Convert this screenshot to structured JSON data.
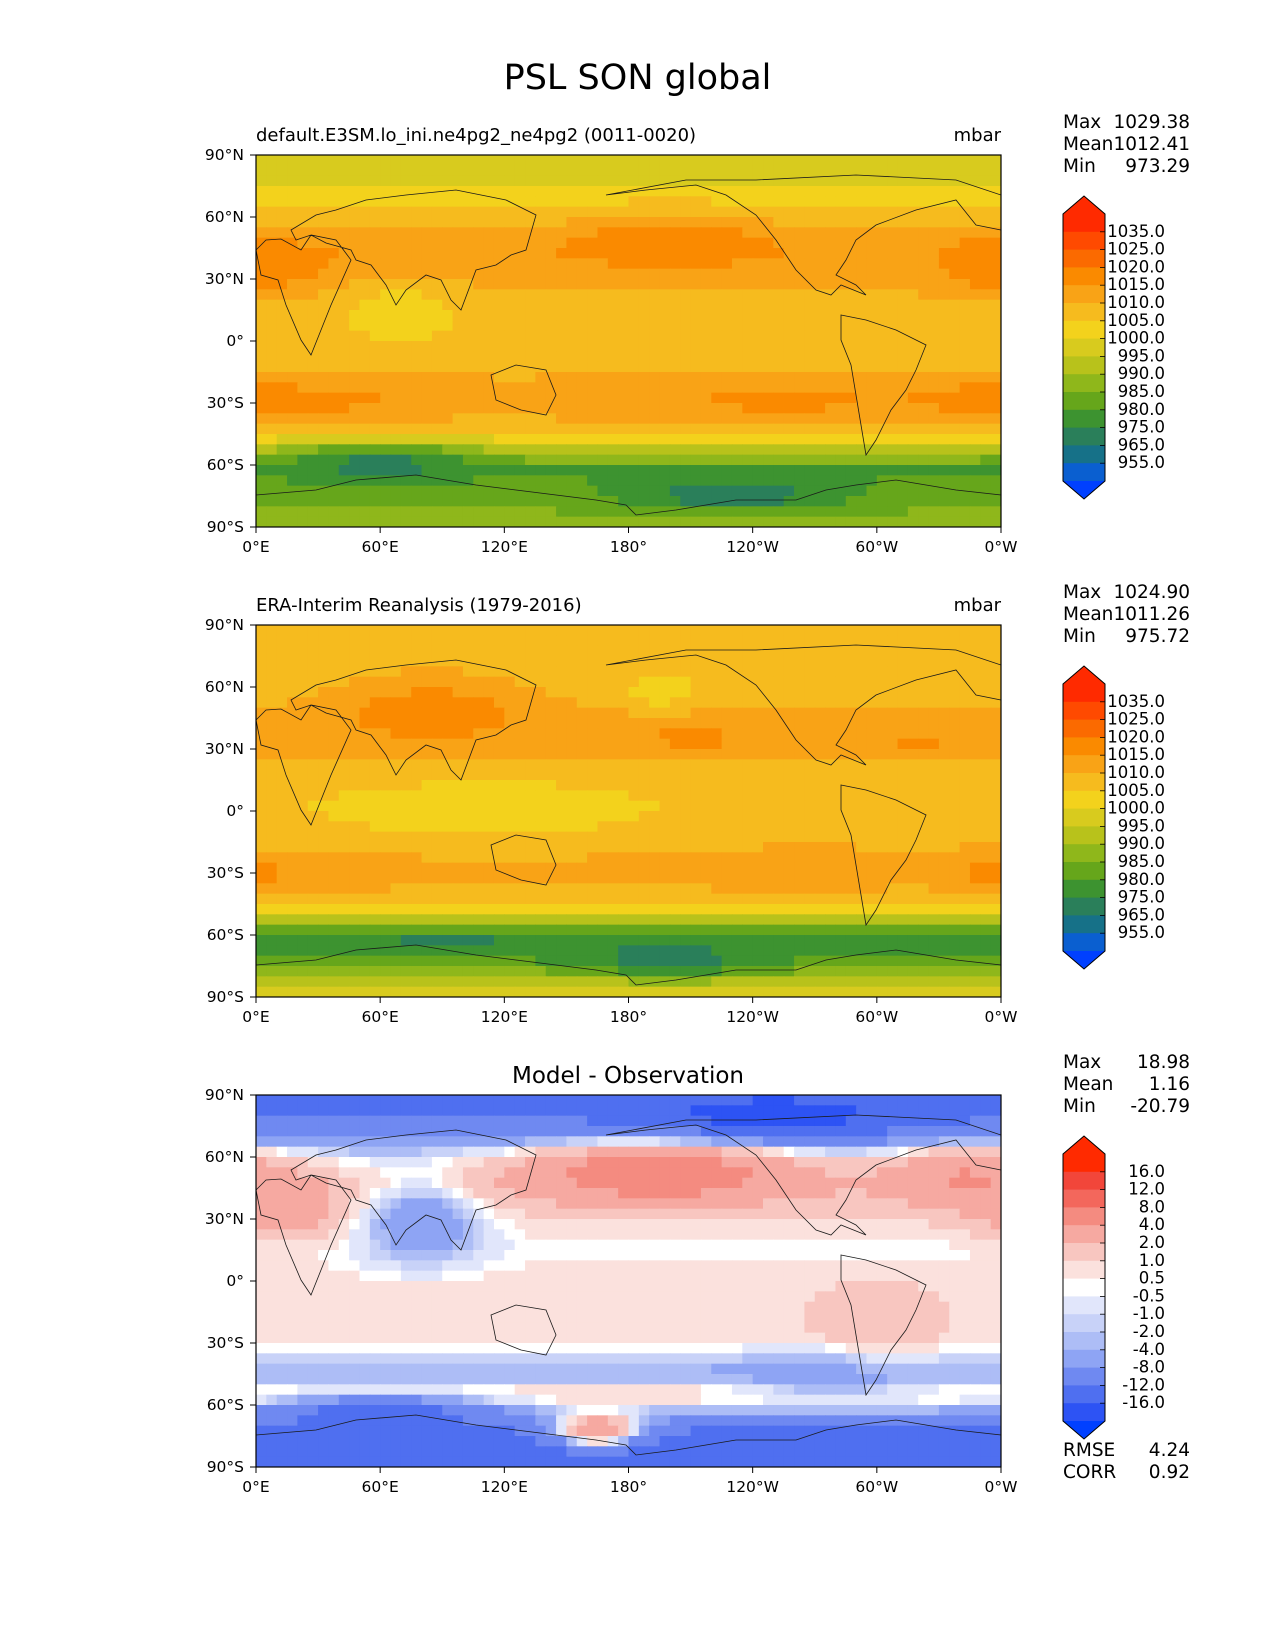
{
  "figure_title": "PSL SON global",
  "chart_data": [
    {
      "type": "contourf_map",
      "title_left": "default.E3SM.lo_ini.ne4pg2_ne4pg2 (0011-0020)",
      "title_center": "",
      "title_right": "mbar",
      "xticks": [
        "0°E",
        "60°E",
        "120°E",
        "180°",
        "120°W",
        "60°W",
        "0°W"
      ],
      "yticks": [
        "90°N",
        "60°N",
        "30°N",
        "0°",
        "30°S",
        "60°S",
        "90°S"
      ],
      "lat_range": [
        -90,
        90
      ],
      "lon_range": [
        0,
        360
      ],
      "stats": [
        {
          "label": "Max",
          "value": "1029.38"
        },
        {
          "label": "Mean",
          "value": "1012.41"
        },
        {
          "label": "Min",
          "value": "973.29"
        }
      ],
      "colorbar": {
        "labels": [
          "1035.0",
          "1025.0",
          "1020.0",
          "1015.0",
          "1010.0",
          "1005.0",
          "1000.0",
          "995.0",
          "990.0",
          "985.0",
          "980.0",
          "975.0",
          "965.0",
          "955.0"
        ],
        "colors": [
          "#ff2a00",
          "#ff4a00",
          "#fb6a00",
          "#fa8a00",
          "#f9a316",
          "#f6bb1e",
          "#f3d21c",
          "#d8cb1e",
          "#b8c21b",
          "#8fb71b",
          "#66a61b",
          "#3d9330",
          "#2a7f5a",
          "#167188",
          "#0a5fd0",
          "#0040ff"
        ],
        "top_color": "#ff2a00",
        "bottom_color": "#0040ff"
      },
      "lat_profile": [
        {
          "lat": 90,
          "value": 1003
        },
        {
          "lat": 75,
          "value": 1005
        },
        {
          "lat": 60,
          "value": 1011
        },
        {
          "lat": 45,
          "value": 1019
        },
        {
          "lat": 30,
          "value": 1017
        },
        {
          "lat": 15,
          "value": 1012
        },
        {
          "lat": 0,
          "value": 1011
        },
        {
          "lat": -15,
          "value": 1014
        },
        {
          "lat": -30,
          "value": 1020
        },
        {
          "lat": -45,
          "value": 1010
        },
        {
          "lat": -55,
          "value": 995
        },
        {
          "lat": -62,
          "value": 983
        },
        {
          "lat": -70,
          "value": 987
        },
        {
          "lat": -80,
          "value": 990
        },
        {
          "lat": -90,
          "value": 992
        }
      ],
      "features": [
        {
          "lon": 200,
          "lat": 48,
          "dlon": 38,
          "dlat": 10,
          "value": 1023
        },
        {
          "lon": 15,
          "lat": 37,
          "dlon": 20,
          "dlat": 8,
          "value": 1022
        },
        {
          "lon": 350,
          "lat": 38,
          "dlon": 18,
          "dlat": 10,
          "value": 1021
        },
        {
          "lon": 70,
          "lat": 15,
          "dlon": 22,
          "dlat": 10,
          "value": 1008
        },
        {
          "lon": 60,
          "lat": -58,
          "dlon": 30,
          "dlat": 6,
          "value": 978
        },
        {
          "lon": 230,
          "lat": -75,
          "dlon": 40,
          "dlat": 5,
          "value": 976
        },
        {
          "lon": 30,
          "lat": -28,
          "dlon": 25,
          "dlat": 6,
          "value": 1021
        },
        {
          "lon": 255,
          "lat": -28,
          "dlon": 30,
          "dlat": 6,
          "value": 1021
        },
        {
          "lon": 345,
          "lat": -28,
          "dlon": 20,
          "dlat": 6,
          "value": 1021
        }
      ],
      "rmse": "",
      "corr": ""
    },
    {
      "type": "contourf_map",
      "title_left": "ERA-Interim Reanalysis (1979-2016)",
      "title_center": "",
      "title_right": "mbar",
      "xticks": [
        "0°E",
        "60°E",
        "120°E",
        "180°",
        "120°W",
        "60°W",
        "0°W"
      ],
      "yticks": [
        "90°N",
        "60°N",
        "30°N",
        "0°",
        "30°S",
        "60°S",
        "90°S"
      ],
      "lat_range": [
        -90,
        90
      ],
      "lon_range": [
        0,
        360
      ],
      "stats": [
        {
          "label": "Max",
          "value": "1024.90"
        },
        {
          "label": "Mean",
          "value": "1011.26"
        },
        {
          "label": "Min",
          "value": "975.72"
        }
      ],
      "colorbar": {
        "labels": [
          "1035.0",
          "1025.0",
          "1020.0",
          "1015.0",
          "1010.0",
          "1005.0",
          "1000.0",
          "995.0",
          "990.0",
          "985.0",
          "980.0",
          "975.0",
          "965.0",
          "955.0"
        ],
        "colors": [
          "#ff2a00",
          "#ff4a00",
          "#fb6a00",
          "#fa8a00",
          "#f9a316",
          "#f6bb1e",
          "#f3d21c",
          "#d8cb1e",
          "#b8c21b",
          "#8fb71b",
          "#66a61b",
          "#3d9330",
          "#2a7f5a",
          "#167188",
          "#0a5fd0",
          "#0040ff"
        ],
        "top_color": "#ff2a00",
        "bottom_color": "#0040ff"
      },
      "lat_profile": [
        {
          "lat": 90,
          "value": 1012
        },
        {
          "lat": 75,
          "value": 1013
        },
        {
          "lat": 60,
          "value": 1012
        },
        {
          "lat": 45,
          "value": 1016
        },
        {
          "lat": 30,
          "value": 1016
        },
        {
          "lat": 15,
          "value": 1012
        },
        {
          "lat": 0,
          "value": 1011
        },
        {
          "lat": -15,
          "value": 1014
        },
        {
          "lat": -30,
          "value": 1018
        },
        {
          "lat": -45,
          "value": 1010
        },
        {
          "lat": -55,
          "value": 992
        },
        {
          "lat": -65,
          "value": 982
        },
        {
          "lat": -75,
          "value": 990
        },
        {
          "lat": -85,
          "value": 1002
        },
        {
          "lat": -90,
          "value": 1006
        }
      ],
      "features": [
        {
          "lon": 85,
          "lat": 48,
          "dlon": 35,
          "dlat": 12,
          "value": 1023
        },
        {
          "lon": 210,
          "lat": 35,
          "dlon": 25,
          "dlat": 6,
          "value": 1021
        },
        {
          "lon": 320,
          "lat": 33,
          "dlon": 14,
          "dlat": 5,
          "value": 1021
        },
        {
          "lon": 30,
          "lat": -30,
          "dlon": 25,
          "dlat": 6,
          "value": 1020
        },
        {
          "lon": 260,
          "lat": -30,
          "dlon": 30,
          "dlat": 6,
          "value": 1020
        },
        {
          "lon": 350,
          "lat": -30,
          "dlon": 15,
          "dlat": 6,
          "value": 1020
        },
        {
          "lon": 110,
          "lat": 0,
          "dlon": 60,
          "dlat": 12,
          "value": 1008
        },
        {
          "lon": 195,
          "lat": 58,
          "dlon": 12,
          "dlat": 6,
          "value": 1007
        },
        {
          "lon": 200,
          "lat": -72,
          "dlon": 40,
          "dlat": 6,
          "value": 978
        },
        {
          "lon": 90,
          "lat": -64,
          "dlon": 40,
          "dlat": 4,
          "value": 979
        }
      ],
      "rmse": "",
      "corr": ""
    },
    {
      "type": "contourf_map",
      "title_left": "",
      "title_center": "Model - Observation",
      "title_right": "",
      "xticks": [
        "0°E",
        "60°E",
        "120°E",
        "180°",
        "120°W",
        "60°W",
        "0°W"
      ],
      "yticks": [
        "90°N",
        "60°N",
        "30°N",
        "0°",
        "30°S",
        "60°S",
        "90°S"
      ],
      "lat_range": [
        -90,
        90
      ],
      "lon_range": [
        0,
        360
      ],
      "stats": [
        {
          "label": "Max",
          "value": "18.98"
        },
        {
          "label": "Mean",
          "value": "1.16"
        },
        {
          "label": "Min",
          "value": "-20.79"
        }
      ],
      "colorbar": {
        "labels": [
          "16.0",
          "12.0",
          "8.0",
          "4.0",
          "2.0",
          "1.0",
          "0.5",
          "-0.5",
          "-1.0",
          "-2.0",
          "-4.0",
          "-8.0",
          "-12.0",
          "-16.0"
        ],
        "colors": [
          "#ff2a00",
          "#f2463a",
          "#f3675c",
          "#f48b80",
          "#f6a9a1",
          "#f8c6c0",
          "#fbe1dd",
          "#ffffff",
          "#e1e6fb",
          "#c8d2f8",
          "#adbdf6",
          "#8ea4f4",
          "#6f89f1",
          "#4f6ff0",
          "#2d53f4",
          "#0040ff"
        ],
        "top_color": "#ff2a00",
        "bottom_color": "#0040ff"
      },
      "lat_profile": [
        {
          "lat": 90,
          "value": -9
        },
        {
          "lat": 75,
          "value": -7
        },
        {
          "lat": 60,
          "value": 0
        },
        {
          "lat": 45,
          "value": 3
        },
        {
          "lat": 30,
          "value": 1.5
        },
        {
          "lat": 15,
          "value": 0.7
        },
        {
          "lat": 0,
          "value": 1.5
        },
        {
          "lat": -15,
          "value": 1.8
        },
        {
          "lat": -30,
          "value": 1.5
        },
        {
          "lat": -45,
          "value": -2.5
        },
        {
          "lat": -55,
          "value": 2.5
        },
        {
          "lat": -65,
          "value": -3
        },
        {
          "lat": -75,
          "value": -10
        },
        {
          "lat": -90,
          "value": -11
        }
      ],
      "features": [
        {
          "lon": 195,
          "lat": 52,
          "dlon": 45,
          "dlat": 10,
          "value": 12
        },
        {
          "lon": 340,
          "lat": 50,
          "dlon": 25,
          "dlat": 10,
          "value": 8
        },
        {
          "lon": 15,
          "lat": 35,
          "dlon": 20,
          "dlat": 10,
          "value": 6
        },
        {
          "lon": 80,
          "lat": 28,
          "dlon": 20,
          "dlat": 14,
          "value": -4
        },
        {
          "lon": 60,
          "lat": -65,
          "dlon": 35,
          "dlat": 6,
          "value": -12
        },
        {
          "lon": 165,
          "lat": -72,
          "dlon": 15,
          "dlat": 6,
          "value": 8
        },
        {
          "lon": 280,
          "lat": -45,
          "dlon": 30,
          "dlat": 8,
          "value": -3
        },
        {
          "lon": 300,
          "lat": -20,
          "dlon": 18,
          "dlat": 12,
          "value": 4
        },
        {
          "lon": 250,
          "lat": 80,
          "dlon": 50,
          "dlat": 8,
          "value": -14
        }
      ],
      "rmse": "4.24",
      "corr": "0.92"
    }
  ]
}
